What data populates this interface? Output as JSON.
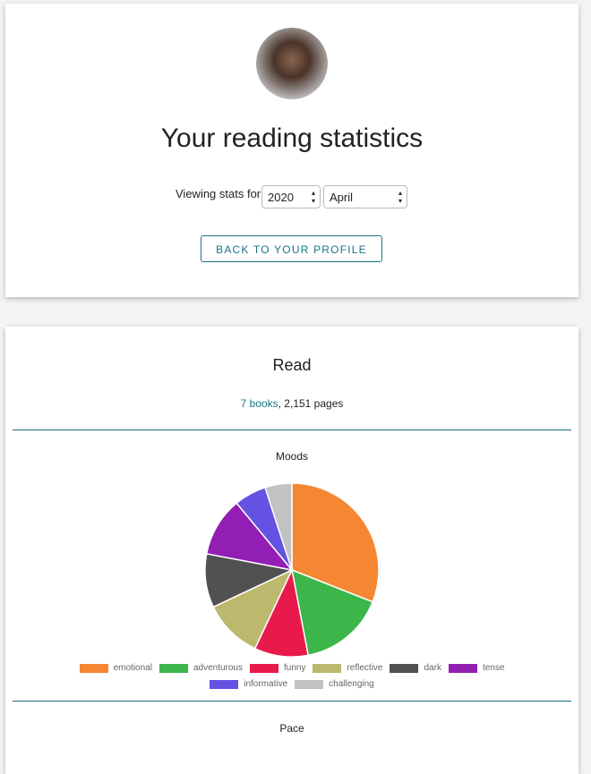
{
  "header": {
    "title": "Your reading statistics",
    "viewing_label": "Viewing stats for",
    "year": "2020",
    "month": "April",
    "button": "BACK TO YOUR PROFILE"
  },
  "summary": {
    "title": "Read",
    "books_link": "7 books",
    "pages": ", 2,151 pages"
  },
  "chart_data": {
    "type": "pie",
    "title": "Moods",
    "categories": [
      "emotional",
      "adventurous",
      "funny",
      "reflective",
      "dark",
      "tense",
      "informative",
      "challenging"
    ],
    "values": [
      31,
      16,
      10,
      11,
      10,
      11,
      6,
      5
    ],
    "colors": [
      "#f58733",
      "#3cb64b",
      "#e8194b",
      "#bcb86e",
      "#515151",
      "#921eb3",
      "#6453e2",
      "#c2c2c2"
    ]
  },
  "pace": {
    "title": "Pace"
  }
}
